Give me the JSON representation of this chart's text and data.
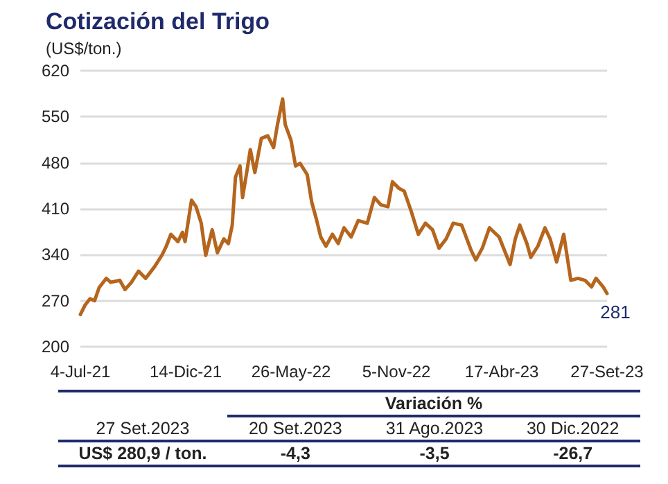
{
  "chart_data": {
    "type": "line",
    "title": "Cotización del Trigo",
    "ylabel": "(US$/ton.)",
    "color": "#b5651d",
    "x": [
      "2021-07-04",
      "2021-07-11",
      "2021-07-19",
      "2021-07-26",
      "2021-08-02",
      "2021-08-13",
      "2021-08-20",
      "2021-09-03",
      "2021-09-11",
      "2021-09-21",
      "2021-10-02",
      "2021-10-13",
      "2021-10-27",
      "2021-11-07",
      "2021-11-14",
      "2021-11-21",
      "2021-12-02",
      "2021-12-09",
      "2021-12-13",
      "2021-12-23",
      "2021-12-30",
      "2022-01-07",
      "2022-01-14",
      "2022-01-24",
      "2022-02-01",
      "2022-02-11",
      "2022-02-18",
      "2022-02-24",
      "2022-03-01",
      "2022-03-08",
      "2022-03-12",
      "2022-03-19",
      "2022-03-24",
      "2022-03-31",
      "2022-04-10",
      "2022-04-20",
      "2022-04-29",
      "2022-05-05",
      "2022-05-13",
      "2022-05-17",
      "2022-05-26",
      "2022-06-02",
      "2022-06-09",
      "2022-06-20",
      "2022-06-27",
      "2022-07-04",
      "2022-07-11",
      "2022-07-19",
      "2022-07-29",
      "2022-08-07",
      "2022-08-16",
      "2022-08-27",
      "2022-09-07",
      "2022-09-21",
      "2022-10-02",
      "2022-10-12",
      "2022-10-23",
      "2022-10-30",
      "2022-11-09",
      "2022-11-17",
      "2022-11-28",
      "2022-12-09",
      "2022-12-20",
      "2022-12-31",
      "2023-01-10",
      "2023-01-21",
      "2023-02-01",
      "2023-02-14",
      "2023-03-01",
      "2023-03-08",
      "2023-03-18",
      "2023-03-29",
      "2023-04-13",
      "2023-04-30",
      "2023-05-08",
      "2023-05-15",
      "2023-05-26",
      "2023-06-01",
      "2023-06-12",
      "2023-06-23",
      "2023-07-01",
      "2023-07-11",
      "2023-07-22",
      "2023-08-02",
      "2023-08-13",
      "2023-08-24",
      "2023-09-03",
      "2023-09-10",
      "2023-09-21",
      "2023-09-27"
    ],
    "values": [
      249,
      263,
      273,
      270,
      290,
      304,
      298,
      301,
      287,
      298,
      315,
      304,
      322,
      339,
      353,
      371,
      360,
      374,
      360,
      423,
      413,
      388,
      339,
      378,
      343,
      364,
      357,
      385,
      458,
      475,
      427,
      469,
      500,
      465,
      517,
      521,
      503,
      538,
      577,
      538,
      514,
      475,
      479,
      462,
      420,
      395,
      367,
      353,
      371,
      357,
      381,
      367,
      392,
      388,
      427,
      416,
      413,
      451,
      441,
      437,
      406,
      371,
      388,
      378,
      350,
      364,
      388,
      385,
      346,
      332,
      350,
      381,
      367,
      325,
      364,
      385,
      357,
      336,
      353,
      381,
      364,
      329,
      371,
      301,
      304,
      301,
      291,
      304,
      291,
      281
    ],
    "value_labels": [
      null,
      null,
      null,
      null,
      null,
      null,
      null,
      null,
      null,
      null,
      null,
      null,
      null,
      null,
      null,
      null,
      null,
      null,
      null,
      null,
      null,
      null,
      null,
      null,
      null,
      null,
      null,
      null,
      null,
      null,
      null,
      null,
      null,
      null,
      null,
      null,
      null,
      null,
      null,
      null,
      null,
      null,
      null,
      null,
      null,
      null,
      null,
      null,
      null,
      null,
      null,
      null,
      null,
      null,
      null,
      null,
      null,
      null,
      null,
      null,
      null,
      null,
      null,
      null,
      null,
      null,
      null,
      null,
      null,
      null,
      null,
      null,
      null,
      null,
      null,
      null,
      null,
      null,
      null,
      null,
      null,
      null,
      null,
      null,
      null,
      null,
      null,
      null,
      null,
      "281"
    ],
    "xlim": [
      "2021-07-04",
      "2023-09-27"
    ],
    "xticks": [
      {
        "value": "2021-07-04",
        "label": "4-Jul-21"
      },
      {
        "value": "2021-12-14",
        "label": "14-Dic-21"
      },
      {
        "value": "2022-05-26",
        "label": "26-May-22"
      },
      {
        "value": "2022-11-05",
        "label": "5-Nov-22"
      },
      {
        "value": "2023-04-17",
        "label": "17-Abr-23"
      },
      {
        "value": "2023-09-27",
        "label": "27-Set-23"
      }
    ],
    "ylim": [
      200,
      620
    ],
    "yticks": [
      200,
      270,
      340,
      410,
      480,
      550,
      620
    ],
    "grid": "y",
    "marker": "none",
    "line_style": "solid",
    "annotations": [
      "Variación %",
      "27 Set.2023",
      "20 Set.2023",
      "31 Ago.2023",
      "30 Dic.2022",
      "US$ 280,9 / ton.",
      "-4,3",
      "-3,5",
      "-26,7"
    ]
  }
}
